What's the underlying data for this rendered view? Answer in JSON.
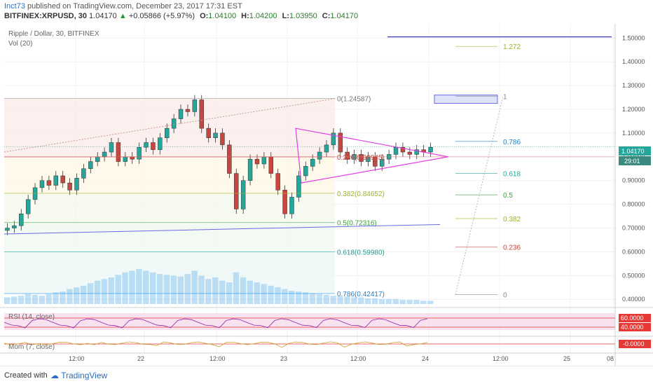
{
  "header": {
    "author": "Inct73",
    "published": "published on TradingView.com, December 23, 2017 17:31 EST",
    "symbol": "BITFINEX:XRPUSD, 30",
    "last": "1.04170",
    "change": "+0.05866 (+5.97%)",
    "o_label": "O:",
    "o": "1.04100",
    "h_label": "H:",
    "h": "1.04200",
    "l_label": "L:",
    "l": "1.03950",
    "c_label": "C:",
    "c": "1.04170"
  },
  "legend": {
    "main": "Ripple / Dollar, 30, BITFINEX",
    "vol": "Vol (20)",
    "rsi": "RSI (14, close)",
    "mom": "Mom (7, close)"
  },
  "price_labels": {
    "last_price": "1.04170",
    "countdown": "29:01",
    "rsi_upper": "60.0000",
    "rsi_lower": "40.0000",
    "mom_value": "-0.0000"
  },
  "footer": {
    "created_with": "Created with",
    "brand": "TradingView"
  },
  "colors": {
    "up": "#26a69a",
    "down": "#c7463f",
    "volume": "#8cc7ee",
    "triangle": "#e040e0",
    "trendline": "#6a6adf",
    "rsi_band": "#f3cfe6"
  },
  "chart_data": {
    "type": "candlestick",
    "title": "Ripple / Dollar, 30, BITFINEX",
    "y_ticks": [
      "1.50000",
      "1.40000",
      "1.30000",
      "1.20000",
      "1.10000",
      "1.00000",
      "0.90000",
      "0.80000",
      "0.70000",
      "0.60000",
      "0.50000",
      "0.40000"
    ],
    "y_range": [
      0.38,
      1.56
    ],
    "x_ticks": [
      "12:00",
      "22",
      "12:00",
      "23",
      "12:00",
      "24",
      "12:00",
      "25",
      "08"
    ],
    "fib_retracement": [
      {
        "label": "0(1.24587)",
        "value": 1.24587
      },
      {
        "label": "0.236(0.99945)",
        "value": 0.99945
      },
      {
        "label": "0.382(0.84652)",
        "value": 0.84652
      },
      {
        "label": "0.5(0.72316)",
        "value": 0.72316
      },
      {
        "label": "0.618(0.59980)",
        "value": 0.5998
      },
      {
        "label": "0.786(0.42417)",
        "value": 0.42417
      }
    ],
    "fib_extension": [
      {
        "label": "1.272",
        "value": 1.465
      },
      {
        "label": "1",
        "value": 1.255
      },
      {
        "label": "0.786",
        "value": 1.065
      },
      {
        "label": "0.618",
        "value": 0.93
      },
      {
        "label": "0.5",
        "value": 0.84
      },
      {
        "label": "0.382",
        "value": 0.74
      },
      {
        "label": "0.236",
        "value": 0.62
      },
      {
        "label": "0",
        "value": 0.42
      }
    ],
    "target_line": 1.505,
    "close_series": [
      0.7,
      0.71,
      0.76,
      0.82,
      0.87,
      0.9,
      0.88,
      0.92,
      0.89,
      0.86,
      0.91,
      0.95,
      0.98,
      1.0,
      1.02,
      1.06,
      0.98,
      1.0,
      0.99,
      1.04,
      1.06,
      1.03,
      1.08,
      1.12,
      1.16,
      1.2,
      1.19,
      1.24,
      1.12,
      1.08,
      1.1,
      1.05,
      0.93,
      0.78,
      0.9,
      0.99,
      0.97,
      1.0,
      0.93,
      0.86,
      0.76,
      0.83,
      0.92,
      0.96,
      0.99,
      1.02,
      1.05,
      1.1,
      1.02,
      0.99,
      1.01,
      0.98,
      1.0,
      0.96,
      0.99,
      1.01,
      1.04,
      1.02,
      1.01,
      1.03,
      1.02,
      1.04
    ],
    "volume_series": [
      8,
      9,
      10,
      12,
      11,
      10,
      12,
      14,
      15,
      18,
      20,
      22,
      25,
      28,
      30,
      32,
      35,
      38,
      40,
      42,
      40,
      38,
      36,
      35,
      34,
      33,
      36,
      40,
      34,
      30,
      32,
      28,
      26,
      38,
      32,
      28,
      26,
      24,
      22,
      20,
      18,
      16,
      15,
      14,
      13,
      12,
      11,
      10,
      9,
      9,
      8,
      8,
      7,
      7,
      6,
      6,
      6,
      5,
      5,
      5,
      4,
      4
    ]
  }
}
